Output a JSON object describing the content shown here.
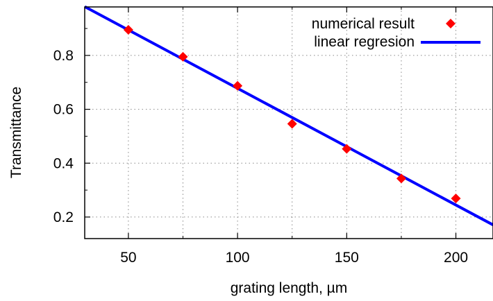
{
  "chart_data": {
    "type": "scatter",
    "xlabel": "grating length, µm",
    "ylabel": "Transmittance",
    "xlim": [
      30,
      217
    ],
    "ylim": [
      0.12,
      0.98
    ],
    "x_ticks": [
      50,
      100,
      150,
      200
    ],
    "x_minor_ticks": [
      75,
      125,
      175
    ],
    "y_ticks": [
      0.2,
      0.4,
      0.6,
      0.8
    ],
    "y_minor_ticks": [
      0.3,
      0.5,
      0.7,
      0.9
    ],
    "grid": true,
    "grid_x": [
      50,
      75,
      100,
      125,
      150,
      175,
      200
    ],
    "grid_y": [
      0.2,
      0.4,
      0.6,
      0.8
    ],
    "legend_position": "top-right",
    "series": [
      {
        "name": "numerical result",
        "type": "scatter",
        "marker": "diamond",
        "color": "#ff0000",
        "x": [
          50,
          75,
          100,
          125,
          150,
          175,
          200
        ],
        "y": [
          0.895,
          0.795,
          0.687,
          0.546,
          0.453,
          0.343,
          0.269
        ]
      },
      {
        "name": "linear regresion",
        "type": "line",
        "color": "#0000ff",
        "x": [
          30,
          217
        ],
        "y": [
          0.981,
          0.171
        ]
      }
    ]
  }
}
